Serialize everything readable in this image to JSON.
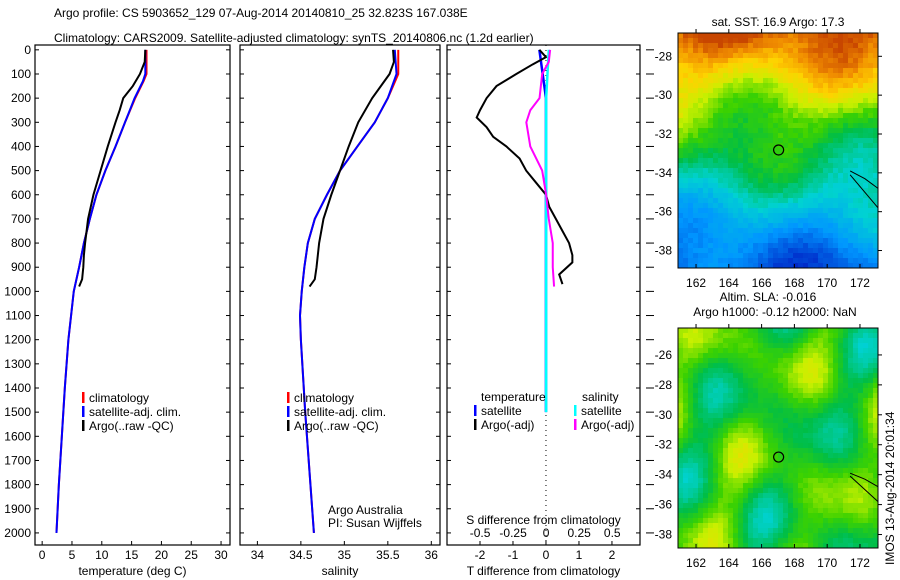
{
  "title_line1": "Argo profile: CS 5903652_129 07-Aug-2014 20140810_25 32.823S 167.038E",
  "title_line2": "Climatology: CARS2009. Satellite-adjusted climatology: synTS_20140806.nc (1.2d earlier)",
  "side_stamp": "IMOS 13-Aug-2014 20:01:34",
  "colors": {
    "climatology": "#ff0000",
    "satellite": "#0000ff",
    "argo": "#000000",
    "sal_satellite": "#00ffff",
    "sal_argo": "#ff00ff"
  },
  "chart_data": [
    {
      "type": "line",
      "name": "temperature-panel",
      "xlabel": "temperature (deg C)",
      "ylabel": "",
      "xlim": [
        -1.2,
        31.5
      ],
      "ylim": [
        2050,
        -20
      ],
      "xticks": [
        0,
        5,
        10,
        15,
        20,
        25,
        30
      ],
      "yticks": [
        0,
        100,
        200,
        300,
        400,
        500,
        600,
        700,
        800,
        900,
        1000,
        1100,
        1200,
        1300,
        1400,
        1500,
        1600,
        1700,
        1800,
        1900,
        2000
      ],
      "legend": [
        "climatology",
        "satellite-adj. clim.",
        "Argo(..raw -QC)"
      ],
      "series": [
        {
          "name": "climatology",
          "depth": [
            0,
            100,
            130,
            200,
            300,
            400,
            500,
            600,
            700,
            800,
            900,
            1000,
            1200,
            1400,
            1600,
            1800,
            2000
          ],
          "values": [
            17.5,
            17.5,
            17.0,
            15.6,
            13.9,
            12.3,
            10.6,
            9.1,
            8.0,
            7.0,
            6.2,
            5.3,
            4.4,
            3.8,
            3.3,
            2.8,
            2.4
          ]
        },
        {
          "name": "satellite-adj. clim.",
          "depth": [
            0,
            100,
            130,
            200,
            300,
            400,
            500,
            600,
            700,
            800,
            900,
            1000,
            1200,
            1400,
            1600,
            1800,
            2000
          ],
          "values": [
            17.3,
            17.3,
            16.9,
            15.5,
            13.9,
            12.3,
            10.6,
            9.1,
            8.0,
            7.0,
            6.2,
            5.3,
            4.4,
            3.8,
            3.3,
            2.8,
            2.4
          ]
        },
        {
          "name": "Argo(..raw -QC)",
          "depth": [
            0,
            50,
            100,
            150,
            200,
            250,
            300,
            400,
            500,
            600,
            700,
            800,
            850,
            900,
            950,
            980
          ],
          "values": [
            17.3,
            17.2,
            16.4,
            15.2,
            13.6,
            13.0,
            12.3,
            11.0,
            9.8,
            8.6,
            7.7,
            7.2,
            7.0,
            6.9,
            6.7,
            6.2
          ]
        }
      ]
    },
    {
      "type": "line",
      "name": "salinity-panel",
      "xlabel": "salinity",
      "xlim": [
        33.8,
        36.1
      ],
      "ylim": [
        2050,
        -20
      ],
      "xticks": [
        34,
        34.5,
        35,
        35.5,
        36
      ],
      "legend": [
        "climatology",
        "satellite-adj. clim.",
        "Argo(..raw -QC)"
      ],
      "annotation": [
        "Argo Australia",
        "PI: Susan Wijffels"
      ],
      "series": [
        {
          "name": "climatology",
          "depth": [
            0,
            100,
            200,
            300,
            400,
            500,
            600,
            700,
            800,
            900,
            1000,
            1100,
            1200,
            1500,
            1800,
            2000
          ],
          "values": [
            35.62,
            35.62,
            35.5,
            35.35,
            35.15,
            34.95,
            34.8,
            34.66,
            34.58,
            34.54,
            34.51,
            34.49,
            34.5,
            34.55,
            34.61,
            34.65
          ]
        },
        {
          "name": "satellite-adj. clim.",
          "depth": [
            0,
            100,
            200,
            300,
            400,
            500,
            600,
            700,
            800,
            900,
            1000,
            1100,
            1200,
            1500,
            1800,
            2000
          ],
          "values": [
            35.58,
            35.6,
            35.5,
            35.35,
            35.15,
            34.95,
            34.8,
            34.66,
            34.58,
            34.54,
            34.51,
            34.49,
            34.5,
            34.55,
            34.61,
            34.65
          ]
        },
        {
          "name": "Argo(..raw -QC)",
          "depth": [
            0,
            50,
            100,
            200,
            300,
            400,
            500,
            600,
            700,
            800,
            900,
            950,
            980
          ],
          "values": [
            35.56,
            35.57,
            35.52,
            35.32,
            35.16,
            35.05,
            34.95,
            34.85,
            34.76,
            34.71,
            34.68,
            34.66,
            34.6
          ]
        }
      ]
    },
    {
      "type": "line",
      "name": "difference-panel",
      "xlabel": "T difference from climatology",
      "x2label": "S difference from climatology",
      "xlim": [
        -3,
        2.85
      ],
      "x2lim": [
        -0.75,
        0.71
      ],
      "ylim": [
        2050,
        -20
      ],
      "xticks": [
        -2,
        -1,
        0,
        1,
        2
      ],
      "xticklabels": [
        "-2",
        "-1",
        "0",
        "1",
        "2"
      ],
      "x2ticks": [
        -0.5,
        -0.25,
        0,
        0.25,
        0.5
      ],
      "x2ticklabels": [
        "-0.5",
        "-0.25",
        "0",
        "0.25",
        "0.5"
      ],
      "legend_titles": [
        "temperature",
        "salinity"
      ],
      "legend": [
        "satellite",
        "Argo(-adj)",
        "satellite",
        "Argo(-adj)"
      ],
      "series": [
        {
          "name": "T satellite",
          "axis": "T",
          "depth": [
            0,
            100,
            200,
            1500
          ],
          "values": [
            -0.2,
            -0.1,
            0,
            0
          ]
        },
        {
          "name": "T Argo(-adj)",
          "axis": "T",
          "depth": [
            0,
            30,
            60,
            100,
            150,
            200,
            250,
            280,
            320,
            360,
            400,
            450,
            500,
            550,
            600,
            650,
            700,
            750,
            800,
            850,
            880,
            930,
            970
          ],
          "values": [
            -0.2,
            0,
            -0.4,
            -0.9,
            -1.5,
            -1.8,
            -2.0,
            -2.1,
            -1.8,
            -1.6,
            -1.2,
            -0.8,
            -0.6,
            -0.3,
            0,
            0.1,
            0.3,
            0.5,
            0.7,
            0.8,
            0.8,
            0.4,
            0.5
          ]
        },
        {
          "name": "S satellite",
          "axis": "S",
          "depth": [
            0,
            100,
            200,
            1500
          ],
          "values": [
            0.02,
            0.01,
            0,
            0
          ]
        },
        {
          "name": "S Argo(-adj)",
          "axis": "S",
          "depth": [
            0,
            50,
            100,
            200,
            250,
            300,
            400,
            500,
            600,
            700,
            800,
            900,
            980
          ],
          "values": [
            0.03,
            0.02,
            -0.03,
            -0.05,
            -0.12,
            -0.15,
            -0.12,
            -0.03,
            0,
            0.02,
            0.05,
            0.05,
            0.06
          ]
        }
      ]
    },
    {
      "type": "heatmap",
      "name": "sst-map",
      "title": "sat. SST: 16.9 Argo: 17.3",
      "xlim": [
        160.9,
        173.1
      ],
      "ylim": [
        -26.8,
        -38.9
      ],
      "xticks": [
        162,
        164,
        166,
        168,
        170,
        172
      ],
      "yticks": [
        -28,
        -30,
        -32,
        -34,
        -36,
        -38
      ],
      "marker": {
        "lon": 167.038,
        "lat": -32.823
      }
    },
    {
      "type": "heatmap",
      "name": "sla-map",
      "title": "Altim. SLA: -0.016",
      "subtitle": "Argo h1000: -0.12 h2000: NaN",
      "xlim": [
        160.9,
        173.1
      ],
      "ylim": [
        -24.2,
        -38.9
      ],
      "xticks": [
        162,
        164,
        166,
        168,
        170,
        172
      ],
      "yticks": [
        -26,
        -28,
        -30,
        -32,
        -34,
        -36,
        -38
      ],
      "marker": {
        "lon": 167.038,
        "lat": -32.823
      }
    }
  ]
}
